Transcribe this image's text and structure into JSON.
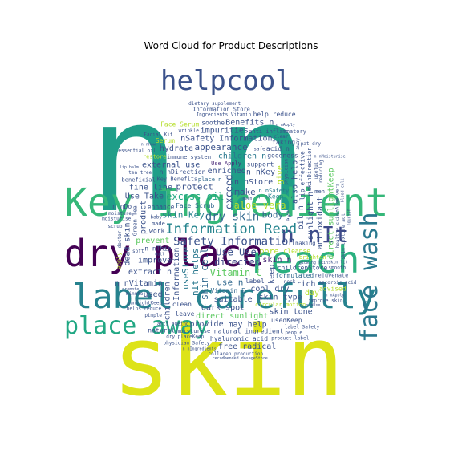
{
  "title": "Word Cloud for Product Descriptions",
  "chart_data": {
    "type": "word_cloud",
    "title": "Word Cloud for Product Descriptions",
    "words": [
      {
        "text": "n",
        "weight": 1.0,
        "color": "#1f9e89"
      },
      {
        "text": "n",
        "weight": 0.98,
        "color": "#1f9e89"
      },
      {
        "text": "skin",
        "weight": 0.82,
        "color": "#dde318"
      },
      {
        "text": "Key Ingredient",
        "weight": 0.52,
        "color": "#35b779"
      },
      {
        "text": "dry place",
        "weight": 0.5,
        "color": "#440154"
      },
      {
        "text": "reach",
        "weight": 0.5,
        "color": "#2ab07f"
      },
      {
        "text": "label carefully",
        "weight": 0.46,
        "color": "#26828e"
      },
      {
        "text": "helpcool",
        "weight": 0.4,
        "color": "#3b528b"
      },
      {
        "text": "place away",
        "weight": 0.36,
        "color": "#22a884"
      },
      {
        "text": "face wash",
        "weight": 0.34,
        "color": "#2a788e"
      },
      {
        "text": "n nIt",
        "weight": 0.28,
        "color": "#3e4a89"
      },
      {
        "text": "Information Read",
        "weight": 0.14,
        "color": "#25848e"
      },
      {
        "text": "Safety Information",
        "weight": 0.12,
        "color": "#3b528b"
      },
      {
        "text": "dry skin",
        "weight": 0.12,
        "color": "#31688e"
      },
      {
        "text": "Use Use",
        "weight": 0.1,
        "color": "#3b528b"
      },
      {
        "text": "exceed",
        "weight": 0.1,
        "color": "#3b528b"
      },
      {
        "text": "directed",
        "weight": 0.1,
        "color": "#414487"
      },
      {
        "text": "Vitamin C",
        "weight": 0.1,
        "color": "#5ec962"
      },
      {
        "text": "aloe vera",
        "weight": 0.1,
        "color": "#b5de2b"
      },
      {
        "text": "excess oil",
        "weight": 0.1,
        "color": "#22a884"
      },
      {
        "text": "skin cell",
        "weight": 0.1,
        "color": "#31688e"
      },
      {
        "text": "skin Key",
        "weight": 0.09,
        "color": "#26828e"
      },
      {
        "text": "make",
        "weight": 0.09,
        "color": "#3b528b"
      },
      {
        "text": "pore",
        "weight": 0.08,
        "color": "#b5de2b"
      },
      {
        "text": "use n",
        "weight": 0.09,
        "color": "#31688e"
      },
      {
        "text": "nIt helps",
        "weight": 0.09,
        "color": "#2a788e"
      },
      {
        "text": "protect",
        "weight": 0.09,
        "color": "#3b528b"
      },
      {
        "text": "body",
        "weight": 0.09,
        "color": "#31688e"
      },
      {
        "text": "Face Scrub",
        "weight": 0.07,
        "color": "#31688e"
      },
      {
        "text": "n nKeep",
        "weight": 0.07,
        "color": "#25848e"
      },
      {
        "text": "useStore",
        "weight": 0.09,
        "color": "#2a788e"
      },
      {
        "text": "n nStore",
        "weight": 0.08,
        "color": "#3b528b"
      },
      {
        "text": "skin n",
        "weight": 0.08,
        "color": "#482878"
      },
      {
        "text": "Vitamin E",
        "weight": 0.07,
        "color": "#31688e"
      },
      {
        "text": "place n",
        "weight": 0.06,
        "color": "#31688e"
      },
      {
        "text": "keep",
        "weight": 0.08,
        "color": "#3b528b"
      },
      {
        "text": "enriched",
        "weight": 0.08,
        "color": "#3b528b"
      },
      {
        "text": "suitable",
        "weight": 0.08,
        "color": "#3b528b"
      },
      {
        "text": "Use Apply",
        "weight": 0.06,
        "color": "#482878"
      },
      {
        "text": "n nSafety",
        "weight": 0.06,
        "color": "#2a788e"
      },
      {
        "text": "Information",
        "weight": 0.08,
        "color": "#3b528b"
      },
      {
        "text": "n nKey",
        "weight": 0.08,
        "color": "#3b528b"
      },
      {
        "text": "cool dry",
        "weight": 0.08,
        "color": "#3b528b"
      },
      {
        "text": "children n",
        "weight": 0.08,
        "color": "#2a788e"
      },
      {
        "text": "dark spot",
        "weight": 0.08,
        "color": "#3b528b"
      },
      {
        "text": "oil n",
        "weight": 0.08,
        "color": "#3b528b"
      },
      {
        "text": "n nDirection",
        "weight": 0.07,
        "color": "#3b528b"
      },
      {
        "text": "n nThis",
        "weight": 0.07,
        "color": "#3b528b"
      },
      {
        "text": "Key Benefits",
        "weight": 0.06,
        "color": "#3b528b"
      },
      {
        "text": "cleanse",
        "weight": 0.07,
        "color": "#b5de2b"
      },
      {
        "text": "also help",
        "weight": 0.08,
        "color": "#3b528b"
      },
      {
        "text": "appearance",
        "weight": 0.09,
        "color": "#3b528b"
      },
      {
        "text": "formulated",
        "weight": 0.07,
        "color": "#31688e"
      },
      {
        "text": "prevent",
        "weight": 0.08,
        "color": "#5ec962"
      },
      {
        "text": "skin type",
        "weight": 0.08,
        "color": "#3b528b"
      },
      {
        "text": "sunlight n",
        "weight": 0.08,
        "color": "#3b528b"
      },
      {
        "text": "direct sunlight",
        "weight": 0.08,
        "color": "#5ec962"
      },
      {
        "text": "enhance",
        "weight": 0.07,
        "color": "#3b528b"
      },
      {
        "text": "external use",
        "weight": 0.08,
        "color": "#3b528b"
      },
      {
        "text": "improve",
        "weight": 0.08,
        "color": "#3b528b"
      },
      {
        "text": "give",
        "weight": 0.08,
        "color": "#b5de2b"
      },
      {
        "text": "making",
        "weight": 0.06,
        "color": "#3b528b"
      },
      {
        "text": "circular motion",
        "weight": 0.06,
        "color": "#b5de2b"
      },
      {
        "text": "childrenStore",
        "weight": 0.07,
        "color": "#3b528b"
      },
      {
        "text": "work",
        "weight": 0.07,
        "color": "#3b528b"
      },
      {
        "text": "product",
        "weight": 0.08,
        "color": "#3b528b"
      },
      {
        "text": "support",
        "weight": 0.07,
        "color": "#3b528b"
      },
      {
        "text": "immune system",
        "weight": 0.06,
        "color": "#3b528b"
      },
      {
        "text": "brighten",
        "weight": 0.06,
        "color": "#b5de2b"
      },
      {
        "text": "made",
        "weight": 0.06,
        "color": "#3b528b"
      },
      {
        "text": "antioxidant",
        "weight": 0.08,
        "color": "#3b528b"
      },
      {
        "text": "extract n",
        "weight": 0.08,
        "color": "#3b528b"
      },
      {
        "text": "label",
        "weight": 0.07,
        "color": "#3b528b"
      },
      {
        "text": "fine line",
        "weight": 0.08,
        "color": "#3b528b"
      },
      {
        "text": "nSafety Information",
        "weight": 0.08,
        "color": "#3b528b"
      },
      {
        "text": "direct sunlightKeep",
        "weight": 0.08,
        "color": "#5ec962"
      },
      {
        "text": "Use Take",
        "weight": 0.08,
        "color": "#3b528b"
      },
      {
        "text": "may help",
        "weight": 0.08,
        "color": "#3b528b"
      },
      {
        "text": "rich",
        "weight": 0.08,
        "color": "#3b528b"
      },
      {
        "text": "natural ingredient",
        "weight": 0.07,
        "color": "#3b528b"
      },
      {
        "text": "children",
        "weight": 0.08,
        "color": "#3b528b"
      },
      {
        "text": "skin tone",
        "weight": 0.08,
        "color": "#3b528b"
      },
      {
        "text": "goodness",
        "weight": 0.07,
        "color": "#3b528b"
      },
      {
        "text": "provide",
        "weight": 0.08,
        "color": "#3b528b"
      },
      {
        "text": "impurities",
        "weight": 0.08,
        "color": "#3b528b"
      },
      {
        "text": "effective",
        "weight": 0.07,
        "color": "#3b528b"
      },
      {
        "text": "hyaluronic acid",
        "weight": 0.07,
        "color": "#3b528b"
      },
      {
        "text": "hydrate",
        "weight": 0.08,
        "color": "#3b528b"
      },
      {
        "text": "usedKeep",
        "weight": 0.07,
        "color": "#3b528b"
      },
      {
        "text": "Benefits n",
        "weight": 0.08,
        "color": "#3b528b"
      },
      {
        "text": "dead skin",
        "weight": 0.08,
        "color": "#3b528b"
      },
      {
        "text": "n nVitamin",
        "weight": 0.08,
        "color": "#3b528b"
      },
      {
        "text": "acid n",
        "weight": 0.07,
        "color": "#3b528b"
      },
      {
        "text": "used",
        "weight": 0.08,
        "color": "#3b528b"
      },
      {
        "text": "taking",
        "weight": 0.07,
        "color": "#3b528b"
      },
      {
        "text": "eye",
        "weight": 0.07,
        "color": "#3b528b"
      },
      {
        "text": "clean",
        "weight": 0.07,
        "color": "#3b528b"
      },
      {
        "text": "free radical",
        "weight": 0.08,
        "color": "#3b528b"
      },
      {
        "text": "anti inflammatory",
        "weight": 0.06,
        "color": "#3b528b"
      },
      {
        "text": "beneficial",
        "weight": 0.06,
        "color": "#3b528b"
      },
      {
        "text": "skinDirection",
        "weight": 0.06,
        "color": "#3b528b"
      },
      {
        "text": "restore",
        "weight": 0.06,
        "color": "#b5de2b"
      },
      {
        "text": "rejuvenate",
        "weight": 0.06,
        "color": "#3b528b"
      },
      {
        "text": "Ingredients Vitamin",
        "weight": 0.05,
        "color": "#3b528b"
      },
      {
        "text": "sunlightKeep",
        "weight": 0.05,
        "color": "#3b528b"
      },
      {
        "text": "Green Tea",
        "weight": 0.06,
        "color": "#3b528b"
      },
      {
        "text": "moisturise",
        "weight": 0.06,
        "color": "#3b528b"
      },
      {
        "text": "leave",
        "weight": 0.07,
        "color": "#3b528b"
      },
      {
        "text": "wrinkle",
        "weight": 0.05,
        "color": "#3b528b"
      },
      {
        "text": "neck",
        "weight": 0.05,
        "color": "#3b528b"
      },
      {
        "text": "healthy skin",
        "weight": 0.05,
        "color": "#3b528b"
      },
      {
        "text": "ascorbic acid",
        "weight": 0.05,
        "color": "#3b528b"
      },
      {
        "text": "glowing skin",
        "weight": 0.04,
        "color": "#3b528b"
      },
      {
        "text": "tea tree",
        "weight": 0.05,
        "color": "#3b528b"
      },
      {
        "text": "n nDo",
        "weight": 0.07,
        "color": "#3b528b"
      },
      {
        "text": "useful",
        "weight": 0.05,
        "color": "#3b528b"
      },
      {
        "text": "safe",
        "weight": 0.05,
        "color": "#3b528b"
      },
      {
        "text": "day",
        "weight": 0.08,
        "color": "#b5de2b"
      },
      {
        "text": "soothe",
        "weight": 0.07,
        "color": "#3b528b"
      },
      {
        "text": "Face Serum",
        "weight": 0.07,
        "color": "#b5de2b"
      },
      {
        "text": "lip",
        "weight": 0.07,
        "color": "#3b528b"
      },
      {
        "text": "Serum",
        "weight": 0.07,
        "color": "#b5de2b"
      },
      {
        "text": "dry placeKeep",
        "weight": 0.05,
        "color": "#3b528b"
      },
      {
        "text": "moisture",
        "weight": 0.05,
        "color": "#3b528b"
      },
      {
        "text": "advised",
        "weight": 0.07,
        "color": "#b5de2b"
      },
      {
        "text": "nAloe vera",
        "weight": 0.05,
        "color": "#3b528b"
      },
      {
        "text": "soft",
        "weight": 0.05,
        "color": "#3b528b"
      },
      {
        "text": "Information Store",
        "weight": 0.06,
        "color": "#3b528b"
      },
      {
        "text": "helps reduce",
        "weight": 0.05,
        "color": "#3b528b"
      },
      {
        "text": "improve skin",
        "weight": 0.05,
        "color": "#3b528b"
      },
      {
        "text": "reducing",
        "weight": 0.05,
        "color": "#3b528b"
      },
      {
        "text": "men",
        "weight": 0.06,
        "color": "#3b528b"
      },
      {
        "text": "anti ageing",
        "weight": 0.05,
        "color": "#3b528b"
      },
      {
        "text": "clear",
        "weight": 0.05,
        "color": "#3b528b"
      },
      {
        "text": "smooth",
        "weight": 0.05,
        "color": "#3b528b"
      },
      {
        "text": "physician",
        "weight": 0.05,
        "color": "#3b528b"
      },
      {
        "text": "product label",
        "weight": 0.05,
        "color": "#3b528b"
      },
      {
        "text": "pimple",
        "weight": 0.05,
        "color": "#3b528b"
      },
      {
        "text": "label Safety",
        "weight": 0.05,
        "color": "#3b528b"
      },
      {
        "text": "physician Safety",
        "weight": 0.05,
        "color": "#3b528b"
      },
      {
        "text": "skin texture act",
        "weight": 0.05,
        "color": "#3b528b"
      },
      {
        "text": "collagen production",
        "weight": 0.05,
        "color": "#3b528b"
      },
      {
        "text": "baby",
        "weight": 0.05,
        "color": "#3b528b"
      },
      {
        "text": "recommended dosageStore",
        "weight": 0.04,
        "color": "#3b528b"
      },
      {
        "text": "essential oil",
        "weight": 0.05,
        "color": "#3b528b"
      },
      {
        "text": "away",
        "weight": 0.05,
        "color": "#3b528b"
      },
      {
        "text": "Facial Kit",
        "weight": 0.05,
        "color": "#3b528b"
      },
      {
        "text": "moisturise",
        "weight": 0.05,
        "color": "#3b528b"
      },
      {
        "text": "help reduce",
        "weight": 0.07,
        "color": "#3b528b"
      },
      {
        "text": "natural",
        "weight": 0.07,
        "color": "#3b528b"
      },
      {
        "text": "doctor",
        "weight": 0.05,
        "color": "#3b528b"
      },
      {
        "text": "people",
        "weight": 0.05,
        "color": "#3b528b"
      },
      {
        "text": "dietary supplement",
        "weight": 0.05,
        "color": "#3b528b"
      },
      {
        "text": "pat dry",
        "weight": 0.05,
        "color": "#3b528b"
      },
      {
        "text": "minute",
        "weight": 0.05,
        "color": "#3b528b"
      },
      {
        "text": "apply",
        "weight": 0.06,
        "color": "#b5de2b"
      },
      {
        "text": "scrub",
        "weight": 0.05,
        "color": "#3b528b"
      },
      {
        "text": "skin lit",
        "weight": 0.04,
        "color": "#3b528b"
      },
      {
        "text": "n nMoisturise",
        "weight": 0.04,
        "color": "#3b528b"
      },
      {
        "text": "n nApply",
        "weight": 0.04,
        "color": "#3b528b"
      },
      {
        "text": "nourish",
        "weight": 0.04,
        "color": "#3b528b"
      },
      {
        "text": "lip balm",
        "weight": 0.04,
        "color": "#3b528b"
      },
      {
        "text": "n nUse",
        "weight": 0.04,
        "color": "#3b528b"
      },
      {
        "text": "n nHow",
        "weight": 0.04,
        "color": "#3b528b"
      },
      {
        "text": "n nIngredients",
        "weight": 0.04,
        "color": "#3b528b"
      },
      {
        "text": "blood cell",
        "weight": 0.04,
        "color": "#3b528b"
      },
      {
        "text": "even",
        "weight": 0.04,
        "color": "#3b528b"
      },
      {
        "text": "dull",
        "weight": 0.04,
        "color": "#3b528b"
      },
      {
        "text": "promote",
        "weight": 0.04,
        "color": "#3b528b"
      },
      {
        "text": "n nApply",
        "weight": 0.04,
        "color": "#3b528b"
      }
    ]
  }
}
